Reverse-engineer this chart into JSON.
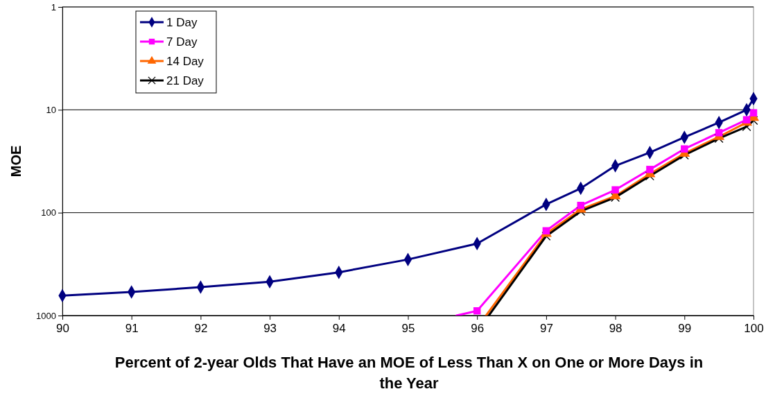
{
  "chart_data": {
    "type": "line",
    "xlabel": "Percent of 2-year Olds That Have an MOE of Less Than X on One or More Days in the Year",
    "ylabel": "MOE",
    "xlim": [
      90,
      100
    ],
    "xticks": [
      90,
      91,
      92,
      93,
      94,
      95,
      96,
      97,
      98,
      99,
      100
    ],
    "ylim": [
      1000,
      1
    ],
    "yticks": [
      1,
      10,
      100,
      1000
    ],
    "log": "y",
    "grid": "y",
    "legend": "top left",
    "line_style": "solid",
    "series": [
      {
        "name": "1 Day",
        "color": "#000080",
        "marker": "diamond",
        "x": [
          90,
          91,
          92,
          93,
          94,
          95,
          96,
          97,
          97.5,
          98,
          98.5,
          99,
          99.5,
          99.9,
          100
        ],
        "values": [
          640,
          590,
          530,
          470,
          380,
          285,
          200,
          83,
          58,
          35,
          26,
          18.5,
          13.3,
          10,
          7.8
        ]
      },
      {
        "name": "7 Day",
        "color": "#ff00ff",
        "marker": "square",
        "x": [
          95.7,
          96,
          97,
          97.5,
          98,
          98.5,
          99,
          99.5,
          99.9,
          100
        ],
        "values": [
          1000,
          900,
          150,
          85,
          60,
          38,
          24,
          16.7,
          12.5,
          10.7
        ]
      },
      {
        "name": "14 Day",
        "color": "#ff6600",
        "marker": "triangle",
        "x": [
          96.13,
          97,
          97.5,
          98,
          98.5,
          99,
          99.5,
          99.9,
          100
        ],
        "values": [
          1000,
          160,
          93,
          69,
          42,
          26.6,
          18.3,
          13.3,
          11.9
        ]
      },
      {
        "name": "21 Day",
        "color": "#000000",
        "marker": "cross",
        "x": [
          96.17,
          97,
          97.5,
          98,
          98.5,
          99,
          99.5,
          99.9,
          100
        ],
        "values": [
          1000,
          169,
          97,
          71,
          44,
          27.6,
          19,
          14.6,
          12.7
        ]
      }
    ]
  }
}
